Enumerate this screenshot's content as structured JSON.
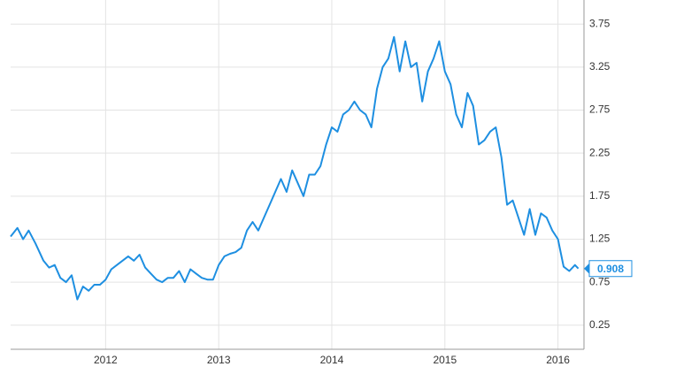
{
  "chart_data": {
    "type": "line",
    "x": [
      2011.16,
      2011.22,
      2011.27,
      2011.32,
      2011.38,
      2011.45,
      2011.5,
      2011.55,
      2011.6,
      2011.65,
      2011.7,
      2011.75,
      2011.8,
      2011.85,
      2011.9,
      2011.95,
      2012.0,
      2012.05,
      2012.1,
      2012.15,
      2012.2,
      2012.25,
      2012.3,
      2012.35,
      2012.4,
      2012.45,
      2012.5,
      2012.55,
      2012.6,
      2012.65,
      2012.7,
      2012.75,
      2012.8,
      2012.85,
      2012.9,
      2012.95,
      2013.0,
      2013.05,
      2013.1,
      2013.15,
      2013.2,
      2013.25,
      2013.3,
      2013.35,
      2013.4,
      2013.45,
      2013.5,
      2013.55,
      2013.6,
      2013.65,
      2013.7,
      2013.75,
      2013.8,
      2013.85,
      2013.9,
      2013.95,
      2014.0,
      2014.05,
      2014.1,
      2014.15,
      2014.2,
      2014.25,
      2014.3,
      2014.35,
      2014.4,
      2014.45,
      2014.5,
      2014.55,
      2014.6,
      2014.65,
      2014.7,
      2014.75,
      2014.8,
      2014.85,
      2014.9,
      2014.95,
      2015.0,
      2015.05,
      2015.1,
      2015.15,
      2015.2,
      2015.25,
      2015.3,
      2015.35,
      2015.4,
      2015.45,
      2015.5,
      2015.55,
      2015.6,
      2015.65,
      2015.7,
      2015.75,
      2015.8,
      2015.85,
      2015.9,
      2015.95,
      2016.0,
      2016.05,
      2016.1,
      2016.15,
      2016.18
    ],
    "series": [
      {
        "color": "#1e8fe1",
        "values": [
          1.28,
          1.38,
          1.25,
          1.35,
          1.2,
          1.0,
          0.92,
          0.95,
          0.8,
          0.75,
          0.83,
          0.55,
          0.7,
          0.65,
          0.72,
          0.72,
          0.78,
          0.9,
          0.95,
          1.0,
          1.05,
          1.0,
          1.07,
          0.92,
          0.85,
          0.78,
          0.75,
          0.8,
          0.8,
          0.88,
          0.75,
          0.9,
          0.85,
          0.8,
          0.78,
          0.78,
          0.95,
          1.05,
          1.08,
          1.1,
          1.15,
          1.35,
          1.45,
          1.35,
          1.5,
          1.65,
          1.8,
          1.95,
          1.8,
          2.05,
          1.9,
          1.75,
          2.0,
          2.0,
          2.1,
          2.35,
          2.55,
          2.5,
          2.7,
          2.75,
          2.85,
          2.75,
          2.7,
          2.55,
          3.0,
          3.25,
          3.35,
          3.6,
          3.2,
          3.55,
          3.25,
          3.3,
          2.85,
          3.2,
          3.35,
          3.55,
          3.2,
          3.05,
          2.7,
          2.55,
          2.95,
          2.8,
          2.35,
          2.4,
          2.5,
          2.55,
          2.2,
          1.65,
          1.7,
          1.5,
          1.3,
          1.6,
          1.3,
          1.55,
          1.5,
          1.35,
          1.25,
          0.93,
          0.88,
          0.95,
          0.908
        ]
      }
    ],
    "last_value": 0.908,
    "xlim": [
      2011.16,
      2016.23
    ],
    "xticks": [
      2012,
      2013,
      2014,
      2015,
      2016
    ],
    "ylim": [
      -0.03,
      4.03
    ],
    "yticks": [
      0.25,
      0.75,
      1.25,
      1.75,
      2.25,
      2.75,
      3.25,
      3.75
    ],
    "grid": true
  }
}
